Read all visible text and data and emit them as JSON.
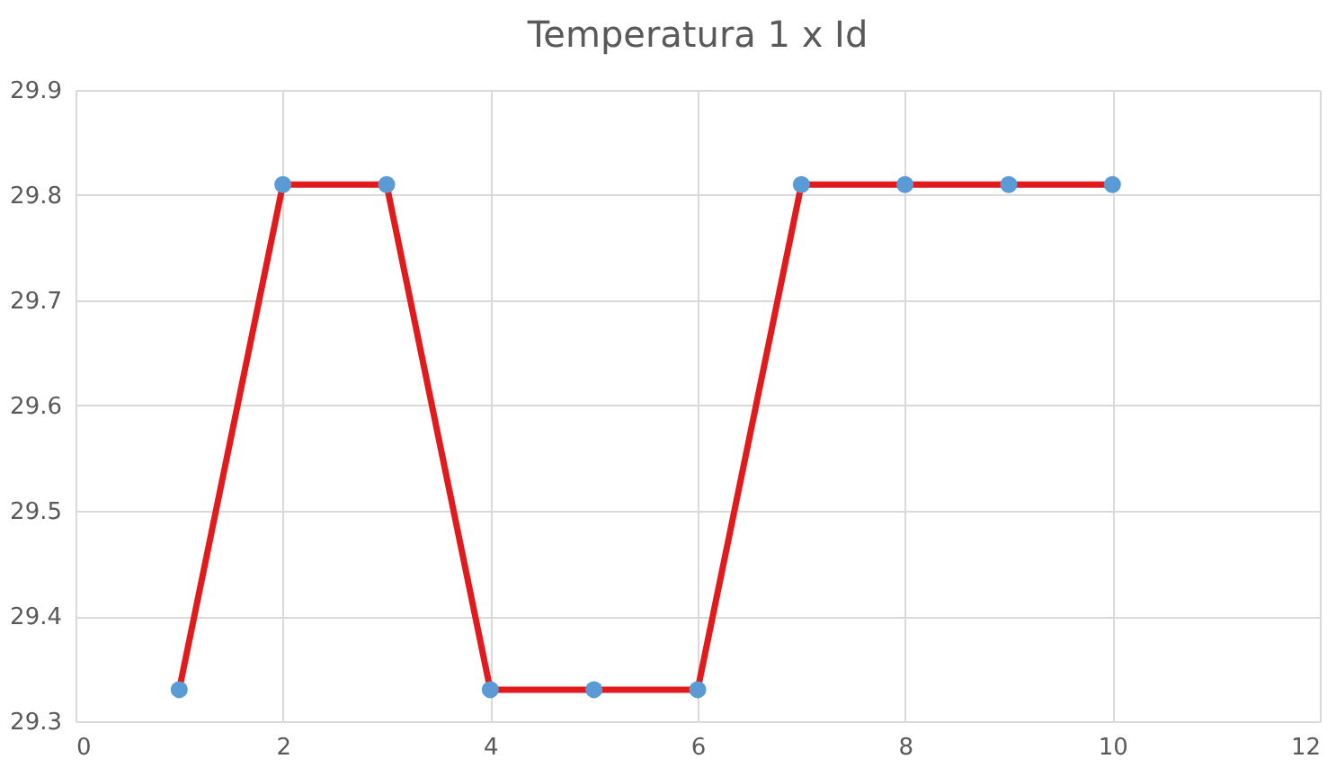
{
  "chart_data": {
    "type": "line",
    "title": "Temperatura 1 x Id",
    "x": [
      1,
      2,
      3,
      4,
      5,
      6,
      7,
      8,
      9,
      10
    ],
    "series": [
      {
        "color": "#e31a1c",
        "values": [
          29.33,
          29.81,
          29.81,
          29.33,
          29.33,
          29.33,
          29.81,
          29.81,
          29.81,
          29.81
        ],
        "marker": "none"
      },
      {
        "type": "scatter",
        "color": "#5b9bd5",
        "values": [
          29.33,
          29.81,
          29.81,
          29.33,
          29.33,
          29.33,
          29.81,
          29.81,
          29.81,
          29.81
        ],
        "marker": "circle"
      }
    ],
    "xlim": [
      0,
      12
    ],
    "xticks": [
      0,
      2,
      4,
      6,
      8,
      10,
      12
    ],
    "ylim": [
      29.3,
      29.9
    ],
    "yticks": [
      29.3,
      29.4,
      29.5,
      29.6,
      29.7,
      29.8,
      29.9
    ],
    "grid": true
  }
}
